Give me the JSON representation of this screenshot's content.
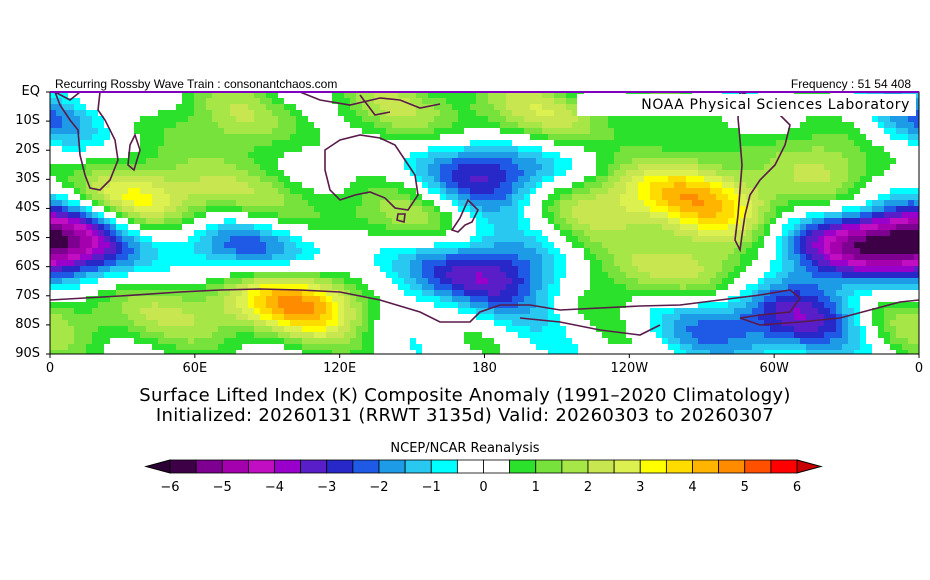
{
  "header": {
    "left_text": "Recurring Rossby Wave Train : consonantchaos.com",
    "right_text": "Frequency : 51 54 408",
    "overlay_text": "NOAA  Physical  Sciences  Laboratory"
  },
  "title": {
    "line1": "Surface Lifted Index (K) Composite Anomaly (1991–2020 Climatology)",
    "line2": "Initialized: 20260131 (RRWT 3135d) Valid: 20260303 to 20260307"
  },
  "colorbar": {
    "title": "NCEP/NCAR Reanalysis",
    "tick_labels": [
      "−6",
      "−5",
      "−4",
      "−3",
      "−2",
      "−1",
      "0",
      "1",
      "2",
      "3",
      "4",
      "5",
      "6"
    ],
    "colors": [
      "#3d0047",
      "#7d0090",
      "#a400ad",
      "#c20ec2",
      "#9900cc",
      "#5a1ec8",
      "#2828c8",
      "#1e5ae6",
      "#1e9be6",
      "#28c8f0",
      "#00ffff",
      "#ffffff",
      "#ffffff",
      "#2be12b",
      "#78e23c",
      "#a6e646",
      "#c8e650",
      "#dcf050",
      "#ffff00",
      "#ffdc00",
      "#ffb400",
      "#ff8c00",
      "#ff5000",
      "#ff0000"
    ]
  },
  "axes": {
    "lat_labels": [
      "EQ",
      "10S",
      "20S",
      "30S",
      "40S",
      "50S",
      "60S",
      "70S",
      "80S",
      "90S"
    ],
    "lon_labels": [
      "0",
      "60E",
      "120E",
      "180",
      "120W",
      "60W",
      "0"
    ]
  },
  "field": {
    "units": "K",
    "levels": [
      -6,
      -5,
      -4,
      -3,
      -2,
      -1,
      0,
      1,
      2,
      3,
      4,
      5,
      6
    ],
    "centers": [
      {
        "lon": 190,
        "lat": -28,
        "value": -3.5
      },
      {
        "lon": 95,
        "lat": -52,
        "value": -3.5
      },
      {
        "lon": 5,
        "lat": -50,
        "value": -3
      },
      {
        "lon": 340,
        "lat": -52,
        "value": -4.5
      },
      {
        "lon": 175,
        "lat": -63,
        "value": -3.5
      },
      {
        "lon": 300,
        "lat": -78,
        "value": -3.5
      },
      {
        "lon": 5,
        "lat": -12,
        "value": -2.5
      },
      {
        "lon": 45,
        "lat": -37,
        "value": 3.5
      },
      {
        "lon": 100,
        "lat": -72,
        "value": 4.5
      },
      {
        "lon": 125,
        "lat": -45,
        "value": 3
      },
      {
        "lon": 240,
        "lat": -35,
        "value": 3.5
      },
      {
        "lon": 210,
        "lat": -10,
        "value": 2
      },
      {
        "lon": 258,
        "lat": -62,
        "value": 2.5
      },
      {
        "lon": 290,
        "lat": -40,
        "value": 2.5
      },
      {
        "lon": 330,
        "lat": -20,
        "value": 2
      },
      {
        "lon": 10,
        "lat": -78,
        "value": 2
      },
      {
        "lon": 60,
        "lat": -10,
        "value": 2
      },
      {
        "lon": 150,
        "lat": -5,
        "value": 1.5
      }
    ]
  }
}
